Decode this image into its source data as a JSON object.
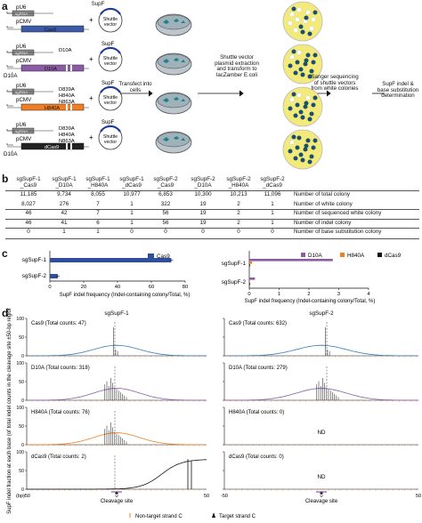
{
  "panel_letters": {
    "a": "a",
    "b": "b",
    "c": "c",
    "d": "d"
  },
  "panel_a": {
    "constructs": [
      {
        "promoter1": "pU6",
        "guide": "sgRNA",
        "promoter2": "pCMV",
        "protein": "Cas9",
        "color": "#3c5aa8",
        "mutations": ""
      },
      {
        "promoter1": "pU6",
        "guide": "sgRNA",
        "promoter2": "pCMV",
        "protein": "D10A",
        "color": "#8d5aa5",
        "mutations": "D10A"
      },
      {
        "promoter1": "pU6",
        "guide": "sgRNA",
        "promoter2": "pCMV",
        "protein": "H840A",
        "color": "#f07e24",
        "mutations": "D839A\nH840A\nN863A"
      },
      {
        "promoter1": "pU6",
        "guide": "sgRNA",
        "promoter2": "pCMV",
        "protein": "dCas9",
        "color": "#222222",
        "mutations": "D839A\nH840A\nN863A"
      }
    ],
    "extra_label": "D10A",
    "plasmid_label_top": "SupF",
    "plasmid_label": "Shuttle\nvector",
    "step1": "Transfect into\ncells",
    "step2": "Shuttle vector\nplasmid extraction\nand transform to\nlacZamber E.coli",
    "step3": "Sanger sequencing\nof shuttle vectors\nfrom white colonies",
    "step4": "SupF indel &\nbase substitution\ndetermination"
  },
  "panel_b": {
    "columns": [
      "sgSupF-1\n_Cas9",
      "sgSupF-1\n_D10A",
      "sgSupF-1\n_H840A",
      "sgSupF-1\n_dCas9",
      "sgSupF-2\n_Cas9",
      "sgSupF-2\n_D10A",
      "sgSupF-2\n_H840A",
      "sgSupF-2\n_dCas9"
    ],
    "rows": [
      {
        "values": [
          "11,185",
          "9,734",
          "8,055",
          "10,977",
          "6,853",
          "10,300",
          "10,213",
          "11,096"
        ],
        "label": "Number of total colony"
      },
      {
        "values": [
          "8,027",
          "276",
          "7",
          "1",
          "322",
          "19",
          "2",
          "1"
        ],
        "label": "Number of white colony"
      },
      {
        "values": [
          "46",
          "42",
          "7",
          "1",
          "56",
          "19",
          "2",
          "1"
        ],
        "label": "Number of sequenced white colony"
      },
      {
        "values": [
          "46",
          "41",
          "6",
          "1",
          "56",
          "19",
          "2",
          "1"
        ],
        "label": "Number of indel colony"
      },
      {
        "values": [
          "0",
          "1",
          "1",
          "0",
          "0",
          "0",
          "0",
          "0"
        ],
        "label": "Number of base substitution colony"
      }
    ]
  },
  "panel_c": {
    "left": {
      "legend": "Cas9",
      "categories": [
        "sgSupF-1",
        "sgSupF-2"
      ],
      "xticks": [
        "0",
        "20",
        "40",
        "60",
        "80"
      ],
      "xlabel": "SupF indel frequency (Indel-containing colony/Total, %)"
    },
    "right": {
      "legend": [
        "D10A",
        "H840A",
        "dCas9"
      ],
      "categories": [
        "sgSupF-1",
        "sgSupF-2"
      ],
      "xticks": [
        "0",
        "1",
        "2",
        "3",
        "4"
      ],
      "xlabel": "SupF indel frequency (Indel-containing colony/Total, %)"
    }
  },
  "chart_data": [
    {
      "type": "bar",
      "title": "",
      "categories": [
        "sgSupF-1",
        "sgSupF-2"
      ],
      "series": [
        {
          "name": "Cas9",
          "values": [
            71.8,
            4.7
          ]
        }
      ],
      "xlim": [
        0,
        80
      ],
      "color": "#2f4f9e"
    },
    {
      "type": "bar",
      "title": "",
      "categories": [
        "sgSupF-1",
        "sgSupF-2"
      ],
      "series": [
        {
          "name": "D10A",
          "values": [
            2.8,
            0.19
          ]
        },
        {
          "name": "H840A",
          "values": [
            0.09,
            0.02
          ]
        },
        {
          "name": "dCas9",
          "values": [
            0.01,
            0.01
          ]
        }
      ],
      "xlim": [
        0,
        4
      ],
      "colors": [
        "#8d5aa5",
        "#f07e24",
        "#111111"
      ]
    }
  ],
  "panel_d": {
    "ylabel": "SupF indel fraction at each base (of total indel counts in the cleavage site ±50-bp region, %)",
    "site_labels": [
      "sgSupF-1",
      "sgSupF-2"
    ],
    "left_panels": [
      "Cas9 (Total counts: 47)",
      "D10A (Total counts: 318)",
      "H840A (Total counts: 76)",
      "dCas9 (Total counts: 2)"
    ],
    "right_panels": [
      "Cas9 (Total counts: 632)",
      "D10A (Total counts: 279)",
      "H840A (Total counts: 0)",
      "dCas9 (Total counts: 0)"
    ],
    "nd": "ND",
    "yticks": [
      "100",
      "50",
      "0"
    ],
    "xticks": [
      "-50",
      "0",
      "50"
    ],
    "xunit": "(bp)",
    "cleavage": "Cleavage site",
    "legend_non_target": "Non-target strand C",
    "legend_target": "Target strand C"
  }
}
